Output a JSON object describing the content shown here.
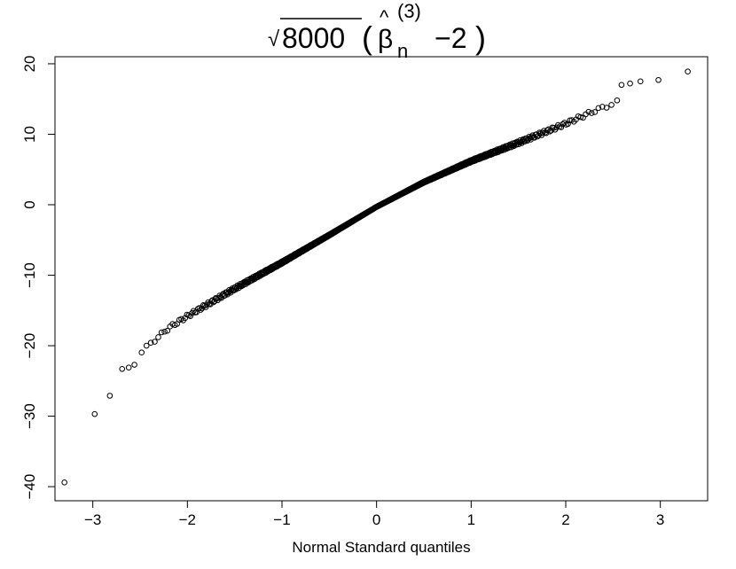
{
  "chart_data": {
    "type": "scatter",
    "title": {
      "root_symbol": "√",
      "radicand": "8000",
      "open_paren": "(",
      "hat": "^",
      "beta": "β",
      "subscript": "n",
      "superscript": "(3)",
      "minus_two": "−2",
      "close_paren": ")"
    },
    "xlabel": "Normal Standard quantiles",
    "ylabel": "",
    "xlim": [
      -3.4,
      3.5
    ],
    "ylim": [
      -42,
      21
    ],
    "x_ticks": [
      -3,
      -2,
      -1,
      0,
      1,
      2,
      3
    ],
    "x_tick_labels": [
      "−3",
      "−2",
      "−1",
      "0",
      "1",
      "2",
      "3"
    ],
    "y_ticks": [
      -40,
      -30,
      -20,
      -10,
      0,
      10,
      20
    ],
    "y_tick_labels": [
      "−40",
      "−30",
      "−20",
      "−10",
      "0",
      "10",
      "20"
    ],
    "grid": false,
    "marker": "open-circle",
    "point_color": "#000000",
    "outlier_points": {
      "x": [
        -3.3,
        -2.98,
        -2.82,
        -2.69,
        -2.62,
        -2.56,
        2.59,
        2.68,
        2.79,
        2.98,
        3.29
      ],
      "y": [
        -39.4,
        -29.7,
        -27.1,
        -23.3,
        -23.1,
        -22.7,
        17.0,
        17.2,
        17.5,
        17.7,
        18.9
      ]
    },
    "quantile_curve": {
      "x": [
        -2.5,
        -2.2,
        -2.0,
        -1.5,
        -1.0,
        -0.5,
        0.0,
        0.5,
        1.0,
        1.5,
        2.0,
        2.3,
        2.55
      ],
      "y": [
        -21.0,
        -17.5,
        -15.8,
        -11.9,
        -8.2,
        -4.3,
        -0.3,
        3.2,
        6.2,
        8.8,
        11.5,
        13.3,
        14.6
      ]
    },
    "n_points": 1000
  }
}
